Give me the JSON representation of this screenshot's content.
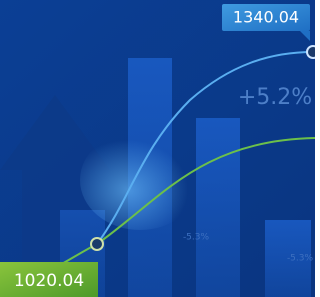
{
  "labels": {
    "top_price": "1340.04",
    "change": "+5.2%",
    "bottom_price": "1020.04",
    "faint_change_1": "-5.3%",
    "faint_change_2": "-5.3%"
  }
}
